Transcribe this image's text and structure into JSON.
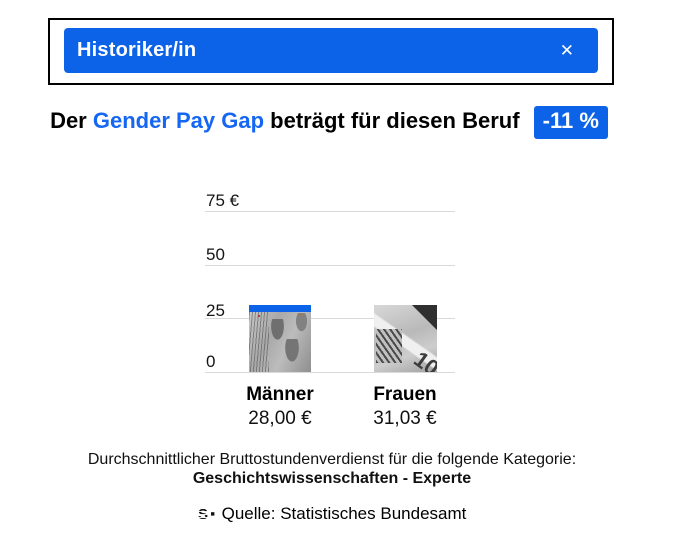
{
  "colors": {
    "accent": "#0c63e8",
    "link_blue": "#1566f2",
    "grid": "#d9d9d9",
    "text": "#111111"
  },
  "select": {
    "value": "Historiker/in"
  },
  "icons": {
    "close": "✕"
  },
  "headline": {
    "prefix": "Der ",
    "highlight": "Gender Pay Gap",
    "suffix": " beträgt für diesen Beruf",
    "badge": "-11 %"
  },
  "chart_data": {
    "type": "bar",
    "categories": [
      "Männer",
      "Frauen"
    ],
    "values": [
      28.0,
      31.03
    ],
    "value_labels": [
      "28,00 €",
      "31,03 €"
    ],
    "gap_overlay": {
      "bar": "Männer",
      "extends_to": 31.03
    },
    "yticks": [
      "75 €",
      "50",
      "25",
      "0"
    ],
    "ytick_values": [
      75,
      50,
      25,
      0
    ],
    "ylim": [
      0,
      87.5
    ],
    "grid": true,
    "bar_style": "grayscale euro banknote photo fill"
  },
  "footer": {
    "line1": "Durchschnittlicher Bruttostundenverdienst für die folgende Kategorie:",
    "line2": "Geschichtswissenschaften - Experte"
  },
  "source": {
    "logo_letter": "S",
    "label": "Quelle: Statistisches Bundesamt"
  }
}
